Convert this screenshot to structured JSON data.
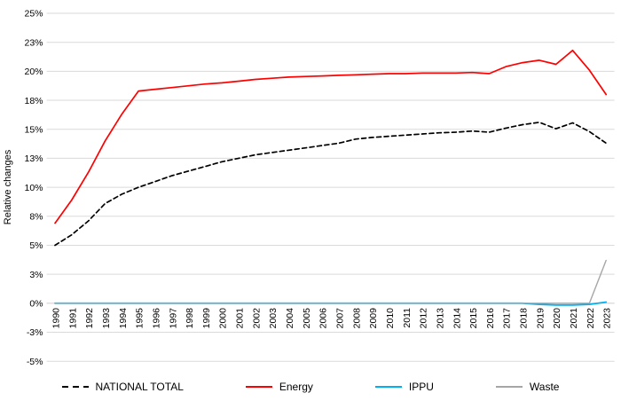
{
  "chart_data": {
    "type": "line",
    "title": "",
    "ylabel": "Relative changes",
    "xlabel": "",
    "ylim": [
      -5,
      25
    ],
    "grid": true,
    "legend_position": "bottom",
    "x_label_rotation": -90,
    "x": [
      1990,
      1991,
      1992,
      1993,
      1994,
      1995,
      1996,
      1997,
      1998,
      1999,
      2000,
      2001,
      2002,
      2003,
      2004,
      2005,
      2006,
      2007,
      2008,
      2009,
      2010,
      2011,
      2012,
      2013,
      2014,
      2015,
      2016,
      2017,
      2018,
      2019,
      2020,
      2021,
      2022,
      2023
    ],
    "y_ticks": [
      {
        "value": 25,
        "label": "25%"
      },
      {
        "value": 22.5,
        "label": "23%"
      },
      {
        "value": 20,
        "label": "20%"
      },
      {
        "value": 17.5,
        "label": "18%"
      },
      {
        "value": 15,
        "label": "15%"
      },
      {
        "value": 12.5,
        "label": "13%"
      },
      {
        "value": 10,
        "label": "10%"
      },
      {
        "value": 7.5,
        "label": "8%"
      },
      {
        "value": 5,
        "label": "5%"
      },
      {
        "value": 2.5,
        "label": "3%"
      },
      {
        "value": 0,
        "label": "0%"
      },
      {
        "value": -2.5,
        "label": "-3%"
      },
      {
        "value": -5,
        "label": "-5%"
      }
    ],
    "series": [
      {
        "key": "national-total",
        "name": "NATIONAL TOTAL",
        "color": "#000000",
        "line_style": "dashed",
        "stroke_width": 1.7,
        "values": [
          5.0,
          5.9,
          7.1,
          8.6,
          9.4,
          10.0,
          10.5,
          11.0,
          11.4,
          11.8,
          12.2,
          12.5,
          12.8,
          13.0,
          13.2,
          13.4,
          13.6,
          13.8,
          14.15,
          14.3,
          14.4,
          14.5,
          14.6,
          14.7,
          14.75,
          14.85,
          14.75,
          15.1,
          15.4,
          15.6,
          15.05,
          15.55,
          14.8,
          13.8
        ]
      },
      {
        "key": "energy",
        "name": "Energy",
        "color": "#FF0000",
        "line_style": "solid",
        "stroke_width": 1.7,
        "values": [
          6.9,
          8.9,
          11.3,
          14.0,
          16.3,
          18.3,
          18.45,
          18.6,
          18.75,
          18.9,
          19.0,
          19.15,
          19.3,
          19.4,
          19.5,
          19.55,
          19.6,
          19.65,
          19.7,
          19.75,
          19.8,
          19.8,
          19.85,
          19.85,
          19.85,
          19.9,
          19.8,
          20.4,
          20.75,
          20.95,
          20.6,
          21.8,
          20.1,
          18.0
        ]
      },
      {
        "key": "ippu",
        "name": "IPPU",
        "color": "#00B0F0",
        "line_style": "solid",
        "stroke_width": 1.8,
        "values": [
          0,
          0,
          0,
          0,
          0,
          0,
          0,
          0,
          0,
          0,
          0,
          0,
          0,
          0,
          0,
          0,
          0,
          0,
          0,
          0,
          0,
          0,
          0,
          0,
          0,
          0,
          0,
          0,
          0,
          -0.1,
          -0.15,
          -0.15,
          -0.1,
          0.1
        ]
      },
      {
        "key": "waste",
        "name": "Waste",
        "color": "#A6A6A6",
        "line_style": "solid",
        "stroke_width": 1.4,
        "values": [
          0,
          0,
          0,
          0,
          0,
          0,
          0,
          0,
          0,
          0,
          0,
          0,
          0,
          0,
          0,
          0,
          0,
          0,
          0,
          0,
          0,
          0,
          0,
          0,
          0,
          0,
          0,
          0,
          0,
          0,
          0,
          0,
          0,
          3.7
        ]
      }
    ],
    "colors": {
      "gridline": "#DADADA",
      "axis_line": "#D9D9D9",
      "text": "#000000",
      "background": "#FFFFFF"
    }
  }
}
